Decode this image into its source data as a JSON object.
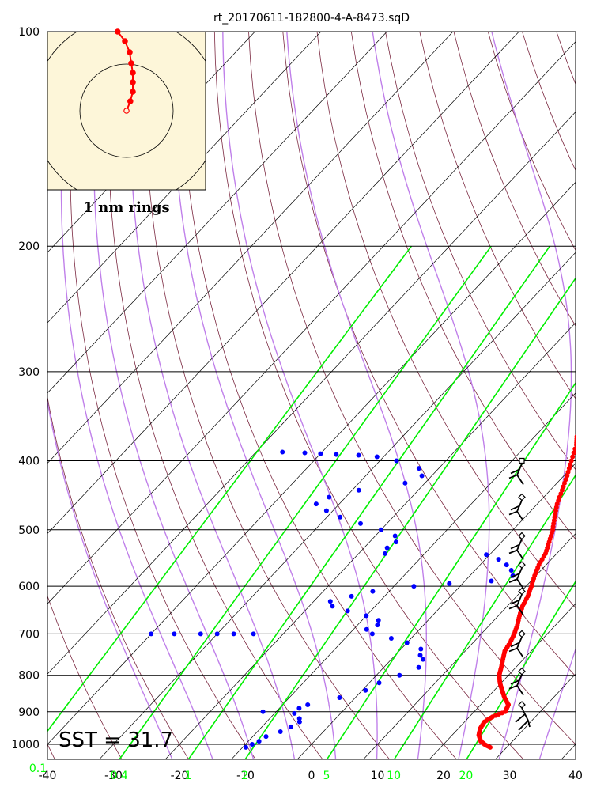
{
  "title": "rt_20170611-182800-4-A-8473.sqD",
  "sst_label": "SST = 31.7",
  "hodograph": {
    "rings_label": "1 nm rings",
    "track": [
      [
        -0.28,
        2.5
      ],
      [
        -0.05,
        2.2
      ],
      [
        0.1,
        1.85
      ],
      [
        0.15,
        1.5
      ],
      [
        0.2,
        1.2
      ],
      [
        0.2,
        0.9
      ],
      [
        0.2,
        0.6
      ],
      [
        0.12,
        0.3
      ],
      [
        0.0,
        0.0
      ]
    ]
  },
  "chart_data": {
    "type": "scatter",
    "title": "rt_20170611-182800-4-A-8473.sqD",
    "xlim": [
      -40,
      40
    ],
    "pressure_range": [
      1000,
      100
    ],
    "pressure_ticks": [
      100,
      200,
      300,
      400,
      500,
      600,
      700,
      800,
      900,
      1000
    ],
    "temperature_ticks": [
      -40,
      -30,
      -20,
      -10,
      0,
      10,
      20,
      30,
      40
    ],
    "mixing_ratio_labels": [
      {
        "label": "0.1",
        "value": 0.1
      },
      {
        "label": "0.4",
        "value": 0.4
      },
      {
        "label": "1",
        "value": 1
      },
      {
        "label": "2",
        "value": 2
      },
      {
        "label": "5",
        "value": 5
      },
      {
        "label": "10",
        "value": 10
      },
      {
        "label": "20",
        "value": 20
      }
    ],
    "series": [
      {
        "color": "#ff0000",
        "points": [
          [
            1010,
            27.5
          ],
          [
            1000,
            26.2
          ],
          [
            990,
            25.2
          ],
          [
            970,
            24.0
          ],
          [
            950,
            23.3
          ],
          [
            930,
            23.0
          ],
          [
            915,
            23.5
          ],
          [
            900,
            24.7
          ],
          [
            880,
            24.2
          ],
          [
            860,
            22.6
          ],
          [
            840,
            21.2
          ],
          [
            820,
            19.8
          ],
          [
            800,
            18.6
          ],
          [
            780,
            17.8
          ],
          [
            760,
            16.9
          ],
          [
            740,
            16.0
          ],
          [
            720,
            15.6
          ],
          [
            700,
            15.0
          ],
          [
            680,
            14.2
          ],
          [
            660,
            13.2
          ],
          [
            640,
            12.3
          ],
          [
            620,
            11.7
          ],
          [
            600,
            10.8
          ],
          [
            580,
            9.8
          ],
          [
            560,
            8.9
          ],
          [
            540,
            8.3
          ],
          [
            520,
            7.2
          ],
          [
            500,
            6.0
          ],
          [
            480,
            4.5
          ],
          [
            460,
            3.0
          ],
          [
            440,
            1.8
          ],
          [
            420,
            0.5
          ],
          [
            400,
            -1.0
          ],
          [
            380,
            -2.5
          ],
          [
            370,
            -3.6
          ]
        ]
      },
      {
        "color": "#0000ff",
        "points": [
          [
            1010,
            -9.5
          ],
          [
            1000,
            -9.0
          ],
          [
            990,
            -8.4
          ],
          [
            975,
            -8.0
          ],
          [
            960,
            -6.5
          ],
          [
            945,
            -5.6
          ],
          [
            930,
            -5.0
          ],
          [
            920,
            -5.5
          ],
          [
            905,
            -7.0
          ],
          [
            900,
            -12.0
          ],
          [
            890,
            -7.0
          ],
          [
            880,
            -6.2
          ],
          [
            860,
            -2.4
          ],
          [
            840,
            0.5
          ],
          [
            820,
            1.5
          ],
          [
            800,
            3.5
          ],
          [
            780,
            5.3
          ],
          [
            760,
            4.8
          ],
          [
            750,
            3.8
          ],
          [
            735,
            3.0
          ],
          [
            720,
            0.0
          ],
          [
            710,
            -3.0
          ],
          [
            700,
            -6.5
          ],
          [
            690,
            -8.0
          ],
          [
            680,
            -7.0
          ],
          [
            670,
            -7.5
          ],
          [
            660,
            -10.0
          ],
          [
            650,
            -13.5
          ],
          [
            640,
            -16.5
          ],
          [
            630,
            -17.5
          ],
          [
            620,
            -15.0
          ],
          [
            610,
            -12.5
          ],
          [
            600,
            -7.0
          ],
          [
            595,
            -2.0
          ],
          [
            590,
            4.0
          ],
          [
            580,
            6.5
          ],
          [
            570,
            5.5
          ],
          [
            560,
            4.0
          ],
          [
            550,
            2.0
          ],
          [
            542,
            -0.5
          ],
          [
            540,
            -16.0
          ],
          [
            530,
            -16.5
          ],
          [
            520,
            -16.0
          ],
          [
            510,
            -17.0
          ],
          [
            500,
            -20.0
          ],
          [
            490,
            -24.0
          ],
          [
            480,
            -28.0
          ],
          [
            470,
            -31.0
          ],
          [
            460,
            -33.5
          ],
          [
            450,
            -32.5
          ],
          [
            440,
            -29.0
          ],
          [
            430,
            -23.0
          ],
          [
            420,
            -21.5
          ],
          [
            410,
            -23.0
          ],
          [
            400,
            -27.5
          ],
          [
            395,
            -31.0
          ],
          [
            393,
            -34.0
          ],
          [
            392,
            -37.5
          ],
          [
            391,
            -40.0
          ],
          [
            390,
            -42.5
          ],
          [
            389,
            -46.0
          ],
          [
            700,
            -40.0
          ],
          [
            700,
            -36.5
          ],
          [
            700,
            -32.5
          ],
          [
            700,
            -30.0
          ],
          [
            700,
            -27.5
          ],
          [
            700,
            -24.5
          ]
        ]
      }
    ],
    "wind_barbs": [
      {
        "pressure": 400,
        "type": "square"
      },
      {
        "pressure": 450,
        "type": "diamond"
      },
      {
        "pressure": 510,
        "type": "diamond"
      },
      {
        "pressure": 560,
        "type": "diamond"
      },
      {
        "pressure": 610,
        "type": "diamond"
      },
      {
        "pressure": 700,
        "type": "diamond"
      },
      {
        "pressure": 790,
        "type": "diamond"
      },
      {
        "pressure": 880,
        "type": "diamond"
      }
    ]
  }
}
